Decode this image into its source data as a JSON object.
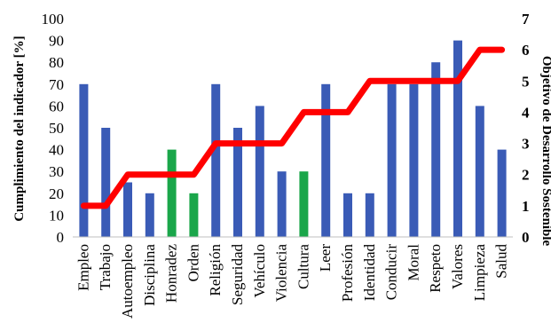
{
  "chart_data": {
    "type": "bar",
    "categories": [
      "Empleo",
      "Trabajo",
      "Autoempleo",
      "Disciplina",
      "Honradez",
      "Orden",
      "Religión",
      "Seguridad",
      "Vehículo",
      "Violencia",
      "Cultura",
      "Leer",
      "Profesión",
      "Identidad",
      "Conducir",
      "Moral",
      "Respeto",
      "Valores",
      "Limpieza",
      "Salud"
    ],
    "series": [
      {
        "kind": "bar",
        "axis": "left",
        "values": [
          70,
          50,
          25,
          20,
          40,
          20,
          70,
          50,
          60,
          30,
          30,
          70,
          20,
          20,
          70,
          70,
          80,
          90,
          60,
          40
        ],
        "colors": [
          "#3a5bb6",
          "#3a5bb6",
          "#3a5bb6",
          "#3a5bb6",
          "#1aa64a",
          "#1aa64a",
          "#3a5bb6",
          "#3a5bb6",
          "#3a5bb6",
          "#3a5bb6",
          "#1aa64a",
          "#3a5bb6",
          "#3a5bb6",
          "#3a5bb6",
          "#3a5bb6",
          "#3a5bb6",
          "#3a5bb6",
          "#3a5bb6",
          "#3a5bb6",
          "#3a5bb6"
        ]
      },
      {
        "kind": "step-line",
        "axis": "right",
        "values": [
          1,
          1,
          2,
          2,
          2,
          2,
          3,
          3,
          3,
          3,
          4,
          4,
          4,
          5,
          5,
          5,
          5,
          5,
          6,
          6
        ],
        "color": "#ff0000"
      }
    ],
    "ylabel": "Cumplimiento del indicador [%]",
    "y2label": "Objetivo de Desarrollo Sostenible",
    "ylim": [
      0,
      100
    ],
    "yticks": [
      "0",
      "10",
      "20",
      "30",
      "40",
      "50",
      "60",
      "70",
      "80",
      "90",
      "100"
    ],
    "y2lim": [
      0,
      7
    ],
    "y2ticks": [
      "0",
      "1",
      "2",
      "3",
      "4",
      "5",
      "6",
      "7"
    ],
    "grid": false,
    "legend": "none"
  }
}
